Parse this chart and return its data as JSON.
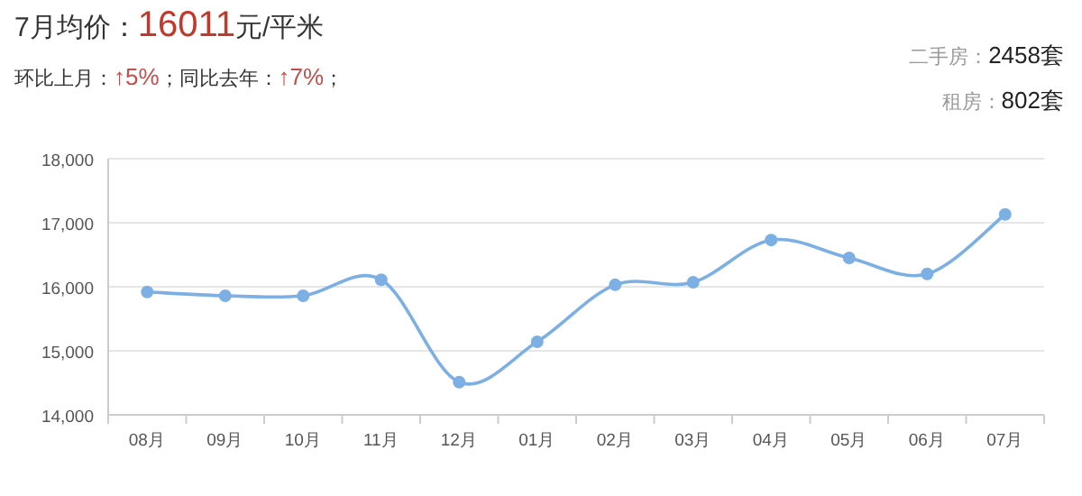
{
  "chart_data": {
    "type": "line",
    "title": "7月均价：16011元/平米",
    "subtitle": "环比上月：↑5%；同比去年：↑7%；",
    "annotations": [
      "二手房：2458套",
      "租房：802套"
    ],
    "categories": [
      "08月",
      "09月",
      "10月",
      "11月",
      "12月",
      "01月",
      "02月",
      "03月",
      "04月",
      "05月",
      "06月",
      "07月"
    ],
    "series": [
      {
        "color": "#7cafe3",
        "values": [
          15920,
          15860,
          15860,
          16110,
          14510,
          15140,
          16030,
          16070,
          16730,
          16450,
          16200,
          17130
        ]
      }
    ],
    "ylim": [
      14000,
      18000
    ],
    "yticks": [
      {
        "value": 14000,
        "label": "14,000"
      },
      {
        "value": 15000,
        "label": "15,000"
      },
      {
        "value": 16000,
        "label": "16,000"
      },
      {
        "value": 17000,
        "label": "17,000"
      },
      {
        "value": 18000,
        "label": "18,000"
      }
    ],
    "grid": "y",
    "marker": "circle"
  }
}
